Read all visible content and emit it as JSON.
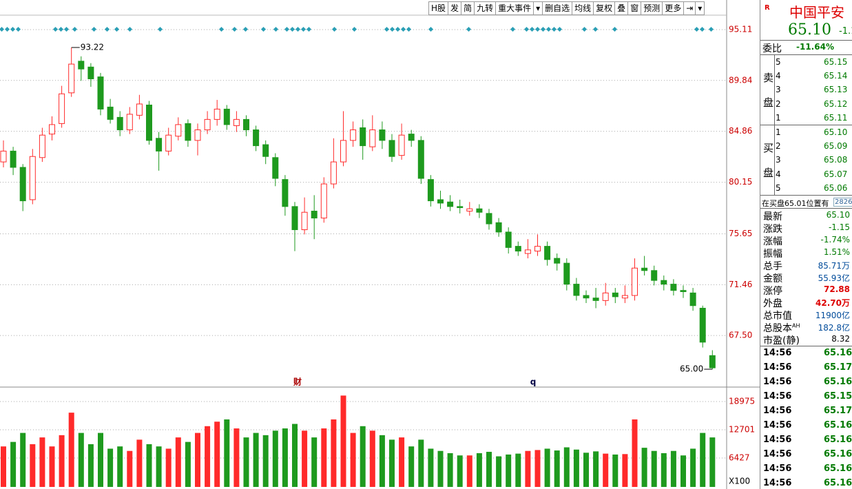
{
  "toolbar": {
    "buttons": [
      "H股",
      "发",
      "简",
      "九转",
      "重大事件",
      "▾",
      "删自选",
      "均线",
      "复权",
      "叠",
      "窗",
      "预测",
      "更多",
      "⇥",
      "▾"
    ]
  },
  "chart_data": {
    "type": "candlestick",
    "log_scale": true,
    "grid": true,
    "ylim": [
      63.81,
      96.66
    ],
    "yticks": [
      {
        "value": 67.5,
        "label": "67.50"
      },
      71.46,
      75.65,
      80.15,
      84.86,
      89.84,
      95.11
    ],
    "high_label": 93.22,
    "low_label": {
      "value": 65,
      "label": "65.00"
    },
    "event_markers": [
      "财",
      "q"
    ],
    "up_color": "#ff2a2a",
    "down_color": "#1e9a1e",
    "candles": [
      [
        82.0,
        84.0,
        81.5,
        83.0
      ],
      [
        83.0,
        83.4,
        80.8,
        81.5
      ],
      [
        81.5,
        81.8,
        77.6,
        78.5
      ],
      [
        78.6,
        83.2,
        78.2,
        82.5
      ],
      [
        82.4,
        85.2,
        82.0,
        84.5
      ],
      [
        84.6,
        86.3,
        84.0,
        85.5
      ],
      [
        85.6,
        89.3,
        85.2,
        88.5
      ],
      [
        88.6,
        93.22,
        88.2,
        91.5
      ],
      [
        91.8,
        92.3,
        89.8,
        91.0
      ],
      [
        91.2,
        91.6,
        89.2,
        90.0
      ],
      [
        90.2,
        90.6,
        86.4,
        87.0
      ],
      [
        87.2,
        88.0,
        85.6,
        86.0
      ],
      [
        86.2,
        86.8,
        84.4,
        85.0
      ],
      [
        85.0,
        87.2,
        84.6,
        86.5
      ],
      [
        86.4,
        88.4,
        86.0,
        87.5
      ],
      [
        87.4,
        87.8,
        83.6,
        84.0
      ],
      [
        84.2,
        84.8,
        81.2,
        83.0
      ],
      [
        83.0,
        85.2,
        82.6,
        84.5
      ],
      [
        84.4,
        86.2,
        84.0,
        85.5
      ],
      [
        85.6,
        86.0,
        83.4,
        84.0
      ],
      [
        84.0,
        85.6,
        82.6,
        85.0
      ],
      [
        85.0,
        86.8,
        84.6,
        86.0
      ],
      [
        86.0,
        87.9,
        85.4,
        87.0
      ],
      [
        87.0,
        87.4,
        85.0,
        85.5
      ],
      [
        85.4,
        86.8,
        84.8,
        86.0
      ],
      [
        86.0,
        86.4,
        84.4,
        85.0
      ],
      [
        85.0,
        85.4,
        83.0,
        83.5
      ],
      [
        83.6,
        84.0,
        81.8,
        82.5
      ],
      [
        82.4,
        82.8,
        79.8,
        80.5
      ],
      [
        80.4,
        80.8,
        77.2,
        78.0
      ],
      [
        78.0,
        78.4,
        74.2,
        76.0
      ],
      [
        76.0,
        78.8,
        75.6,
        77.5
      ],
      [
        77.6,
        79.0,
        75.2,
        77.0
      ],
      [
        77.0,
        80.6,
        76.6,
        80.0
      ],
      [
        80.0,
        84.2,
        79.6,
        82.0
      ],
      [
        82.0,
        86.8,
        81.6,
        84.0
      ],
      [
        84.0,
        85.8,
        83.4,
        85.0
      ],
      [
        85.2,
        86.0,
        82.2,
        83.5
      ],
      [
        83.4,
        86.4,
        83.0,
        85.0
      ],
      [
        85.0,
        85.8,
        83.2,
        84.0
      ],
      [
        84.0,
        84.6,
        82.0,
        82.5
      ],
      [
        82.6,
        85.6,
        82.2,
        84.5
      ],
      [
        84.6,
        85.0,
        83.4,
        84.0
      ],
      [
        84.0,
        84.4,
        80.0,
        80.5
      ],
      [
        80.4,
        80.8,
        78.0,
        78.5
      ],
      [
        78.6,
        79.4,
        77.8,
        78.3
      ],
      [
        78.4,
        79.0,
        77.6,
        78.0
      ],
      [
        78.0,
        78.6,
        77.4,
        77.9
      ],
      [
        77.6,
        78.4,
        77.2,
        77.8
      ],
      [
        77.8,
        78.2,
        77.0,
        77.5
      ],
      [
        77.4,
        77.8,
        76.0,
        76.5
      ],
      [
        76.6,
        77.0,
        75.4,
        75.8
      ],
      [
        75.8,
        76.2,
        74.0,
        74.5
      ],
      [
        74.6,
        75.0,
        73.8,
        74.2
      ],
      [
        74.0,
        75.2,
        73.6,
        74.3
      ],
      [
        74.2,
        75.6,
        73.8,
        74.6
      ],
      [
        74.6,
        75.0,
        73.0,
        73.5
      ],
      [
        73.6,
        74.0,
        72.6,
        73.2
      ],
      [
        73.2,
        73.6,
        71.0,
        71.5
      ],
      [
        71.5,
        72.0,
        70.2,
        70.6
      ],
      [
        70.6,
        71.0,
        70.0,
        70.4
      ],
      [
        70.4,
        71.2,
        69.6,
        70.2
      ],
      [
        70.2,
        71.6,
        69.8,
        70.8
      ],
      [
        70.8,
        71.2,
        70.0,
        70.5
      ],
      [
        70.4,
        71.4,
        70.0,
        70.6
      ],
      [
        70.6,
        73.6,
        70.2,
        72.8
      ],
      [
        72.8,
        73.8,
        72.2,
        72.6
      ],
      [
        72.6,
        73.0,
        71.4,
        71.8
      ],
      [
        71.8,
        72.2,
        71.0,
        71.5
      ],
      [
        71.5,
        71.9,
        70.6,
        71.0
      ],
      [
        71.0,
        71.4,
        70.4,
        70.9
      ],
      [
        70.8,
        71.2,
        69.4,
        69.8
      ],
      [
        69.6,
        69.8,
        66.6,
        67.0
      ],
      [
        66.0,
        66.4,
        65.0,
        65.1
      ]
    ],
    "volumes": [
      9000,
      10000,
      12000,
      9500,
      11000,
      9000,
      11500,
      16500,
      12000,
      9500,
      12000,
      8500,
      9000,
      8000,
      10500,
      9500,
      9000,
      8500,
      11000,
      10000,
      12000,
      13500,
      14500,
      15000,
      13000,
      11000,
      12000,
      11500,
      12500,
      13000,
      14000,
      12500,
      11000,
      13000,
      15000,
      20300,
      12000,
      13500,
      12500,
      11500,
      10500,
      11000,
      9000,
      10500,
      8500,
      8000,
      7500,
      7000,
      7000,
      7500,
      7800,
      6800,
      7200,
      7400,
      8000,
      8200,
      8500,
      8100,
      8800,
      8300,
      7600,
      7900,
      7400,
      7200,
      7300,
      15000,
      8700,
      8000,
      7500,
      8000,
      7000,
      8500,
      12000,
      11000
    ],
    "volume_ylim": [
      0,
      21728
    ],
    "volume_yticks": [
      6427,
      12701,
      18975
    ],
    "volume_unit": "X100"
  },
  "quote": {
    "icon": "R",
    "name": "中国平安",
    "price": "65.10",
    "change": "-1.1",
    "weibi_label": "委比",
    "weibi": "-11.64%",
    "sell_label": [
      "卖",
      "盘"
    ],
    "sell": [
      [
        "5",
        "65.15"
      ],
      [
        "4",
        "65.14"
      ],
      [
        "3",
        "65.13"
      ],
      [
        "2",
        "65.12"
      ],
      [
        "1",
        "65.11"
      ]
    ],
    "buy_label": [
      "买",
      "盘"
    ],
    "buy": [
      [
        "1",
        "65.10"
      ],
      [
        "2",
        "65.09"
      ],
      [
        "3",
        "65.08"
      ],
      [
        "4",
        "65.07"
      ],
      [
        "5",
        "65.06"
      ]
    ],
    "notice": "在买盘65.01位置有",
    "notice_qty": "2826",
    "stats": [
      [
        "最新",
        "65.10"
      ],
      [
        "涨跌",
        "-1.15"
      ],
      [
        "涨幅",
        "-1.74%"
      ],
      [
        "振幅",
        "1.51%"
      ],
      [
        "总手",
        "85.71万"
      ],
      [
        "金额",
        "55.93亿"
      ],
      [
        "涨停",
        "72.88"
      ],
      [
        "外盘",
        "42.70万"
      ],
      [
        "总市值",
        "11900亿"
      ],
      [
        "总股本",
        "182.8亿",
        "AH"
      ],
      [
        "市盈(静)",
        "8.32"
      ]
    ],
    "trades": [
      [
        "14:56",
        "65.16"
      ],
      [
        "14:56",
        "65.17"
      ],
      [
        "14:56",
        "65.16"
      ],
      [
        "14:56",
        "65.15"
      ],
      [
        "14:56",
        "65.17"
      ],
      [
        "14:56",
        "65.16"
      ],
      [
        "14:56",
        "65.16"
      ],
      [
        "14:56",
        "65.16"
      ],
      [
        "14:56",
        "65.16"
      ],
      [
        "14:56",
        "65.16"
      ]
    ]
  }
}
